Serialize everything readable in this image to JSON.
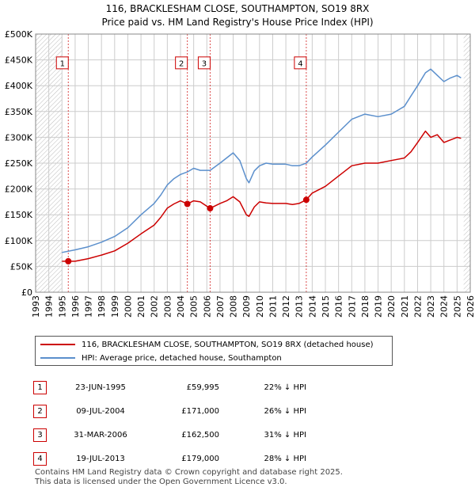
{
  "title_line1": "116, BRACKLESHAM CLOSE, SOUTHAMPTON, SO19 8RX",
  "title_line2": "Price paid vs. HM Land Registry's House Price Index (HPI)",
  "colors": {
    "property": "#cc0000",
    "hpi": "#5b8fcc",
    "grid": "#cccccc",
    "marker": "#cc0000"
  },
  "chart_data": {
    "type": "line",
    "title": "116, BRACKLESHAM CLOSE, SOUTHAMPTON, SO19 8RX — Price paid vs. HM Land Registry's House Price Index (HPI)",
    "xlabel": "",
    "ylabel": "",
    "xlim": [
      1993,
      2026
    ],
    "ylim": [
      0,
      500000
    ],
    "x_ticks": [
      "1993",
      "1994",
      "1995",
      "1996",
      "1997",
      "1998",
      "1999",
      "2000",
      "2001",
      "2002",
      "2003",
      "2004",
      "2005",
      "2006",
      "2007",
      "2008",
      "2009",
      "2010",
      "2011",
      "2012",
      "2013",
      "2014",
      "2015",
      "2016",
      "2017",
      "2018",
      "2019",
      "2020",
      "2021",
      "2022",
      "2023",
      "2024",
      "2025",
      "2026"
    ],
    "y_ticks": [
      {
        "value": 0,
        "label": "£0"
      },
      {
        "value": 50000,
        "label": "£50K"
      },
      {
        "value": 100000,
        "label": "£100K"
      },
      {
        "value": 150000,
        "label": "£150K"
      },
      {
        "value": 200000,
        "label": "£200K"
      },
      {
        "value": 250000,
        "label": "£250K"
      },
      {
        "value": 300000,
        "label": "£300K"
      },
      {
        "value": 350000,
        "label": "£350K"
      },
      {
        "value": 400000,
        "label": "£400K"
      },
      {
        "value": 450000,
        "label": "£450K"
      },
      {
        "value": 500000,
        "label": "£500K"
      }
    ],
    "hatched_range_before": 1995.0,
    "hatched_range_after": 2025.5,
    "grid": true,
    "series": [
      {
        "name": "116, BRACKLESHAM CLOSE, SOUTHAMPTON, SO19 8RX (detached house)",
        "x": [
          1995.0,
          1995.48,
          1996.0,
          1997.0,
          1998.0,
          1999.0,
          2000.0,
          2001.0,
          2002.0,
          2002.5,
          2003.0,
          2003.5,
          2004.0,
          2004.52,
          2005.0,
          2005.5,
          2006.25,
          2007.0,
          2007.5,
          2008.0,
          2008.5,
          2009.0,
          2009.2,
          2009.6,
          2010.0,
          2010.5,
          2011.0,
          2012.0,
          2012.5,
          2013.0,
          2013.55,
          2014.0,
          2015.0,
          2016.0,
          2017.0,
          2018.0,
          2019.0,
          2020.0,
          2021.0,
          2021.5,
          2022.0,
          2022.6,
          2023.0,
          2023.5,
          2024.0,
          2024.5,
          2025.0,
          2025.3
        ],
        "values": [
          60000,
          59995,
          60000,
          65000,
          72000,
          80000,
          95000,
          113000,
          130000,
          145000,
          163000,
          171000,
          177000,
          171000,
          177000,
          175000,
          162500,
          172000,
          177000,
          185000,
          175000,
          150000,
          147000,
          165000,
          175000,
          173000,
          172000,
          172000,
          170000,
          172000,
          179000,
          192000,
          205000,
          225000,
          245000,
          250000,
          250000,
          255000,
          260000,
          272000,
          290000,
          312000,
          300000,
          305000,
          290000,
          295000,
          300000,
          298000
        ]
      },
      {
        "name": "HPI: Average price, detached house, Southampton",
        "x": [
          1995.0,
          1996.0,
          1997.0,
          1998.0,
          1999.0,
          2000.0,
          2001.0,
          2002.0,
          2002.5,
          2003.0,
          2003.5,
          2004.0,
          2004.52,
          2005.0,
          2005.5,
          2006.25,
          2007.0,
          2007.5,
          2008.0,
          2008.5,
          2009.0,
          2009.2,
          2009.6,
          2010.0,
          2010.5,
          2011.0,
          2012.0,
          2012.5,
          2013.0,
          2013.55,
          2014.0,
          2015.0,
          2016.0,
          2017.0,
          2018.0,
          2019.0,
          2020.0,
          2021.0,
          2021.5,
          2022.0,
          2022.6,
          2023.0,
          2023.5,
          2024.0,
          2024.5,
          2025.0,
          2025.3
        ],
        "values": [
          77000,
          82000,
          88000,
          97000,
          108000,
          125000,
          150000,
          172000,
          188000,
          208000,
          220000,
          228000,
          233000,
          240000,
          236000,
          236000,
          250000,
          260000,
          270000,
          255000,
          220000,
          212000,
          235000,
          245000,
          250000,
          248000,
          248000,
          245000,
          245000,
          250000,
          262000,
          285000,
          310000,
          335000,
          345000,
          340000,
          345000,
          360000,
          380000,
          400000,
          425000,
          432000,
          420000,
          408000,
          415000,
          420000,
          415000
        ]
      }
    ],
    "transactions": [
      {
        "label": "1",
        "date": "23-JUN-1995",
        "year": 1995.48,
        "price": 59995,
        "price_label": "£59,995",
        "hpi_diff": "22% ↓ HPI",
        "box_value": 445000
      },
      {
        "label": "2",
        "date": "09-JUL-2004",
        "year": 2004.52,
        "price": 171000,
        "price_label": "£171,000",
        "hpi_diff": "26% ↓ HPI",
        "box_value": 445000
      },
      {
        "label": "3",
        "date": "31-MAR-2006",
        "year": 2006.25,
        "price": 162500,
        "price_label": "£162,500",
        "hpi_diff": "31% ↓ HPI",
        "box_value": 445000
      },
      {
        "label": "4",
        "date": "19-JUL-2013",
        "year": 2013.55,
        "price": 179000,
        "price_label": "£179,000",
        "hpi_diff": "28% ↓ HPI",
        "box_value": 445000
      }
    ]
  },
  "legend": {
    "property_label": "116, BRACKLESHAM CLOSE, SOUTHAMPTON, SO19 8RX (detached house)",
    "hpi_label": "HPI: Average price, detached house, Southampton"
  },
  "footer": {
    "line1": "Contains HM Land Registry data © Crown copyright and database right 2025.",
    "line2": "This data is licensed under the Open Government Licence v3.0."
  }
}
